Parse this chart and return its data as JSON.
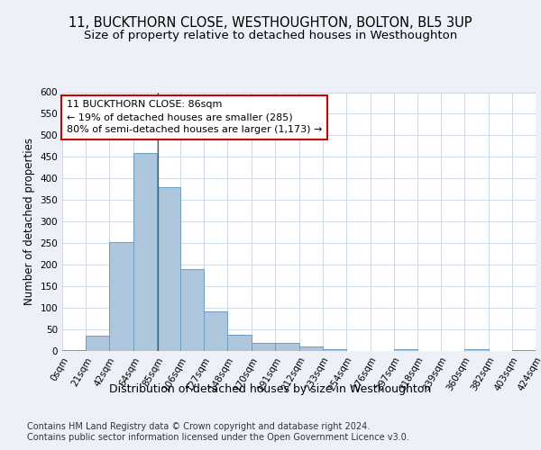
{
  "title": "11, BUCKTHORN CLOSE, WESTHOUGHTON, BOLTON, BL5 3UP",
  "subtitle": "Size of property relative to detached houses in Westhoughton",
  "xlabel": "Distribution of detached houses by size in Westhoughton",
  "ylabel": "Number of detached properties",
  "bar_color": "#aec6dc",
  "bar_edge_color": "#6b9dc2",
  "property_line_color": "#555555",
  "annotation_box_color": "#ffffff",
  "annotation_box_edge": "#cc0000",
  "annotation_text_line1": "11 BUCKTHORN CLOSE: 86sqm",
  "annotation_text_line2": "← 19% of detached houses are smaller (285)",
  "annotation_text_line3": "80% of semi-detached houses are larger (1,173) →",
  "property_value": 86,
  "bin_edges": [
    0,
    21,
    42,
    64,
    85,
    106,
    127,
    148,
    170,
    191,
    212,
    233,
    254,
    276,
    297,
    318,
    339,
    360,
    382,
    403,
    424
  ],
  "bar_heights": [
    3,
    36,
    252,
    460,
    380,
    190,
    91,
    38,
    19,
    19,
    10,
    5,
    0,
    0,
    5,
    0,
    0,
    5,
    0,
    3
  ],
  "ylim": [
    0,
    600
  ],
  "yticks": [
    0,
    50,
    100,
    150,
    200,
    250,
    300,
    350,
    400,
    450,
    500,
    550,
    600
  ],
  "footer_line1": "Contains HM Land Registry data © Crown copyright and database right 2024.",
  "footer_line2": "Contains public sector information licensed under the Open Government Licence v3.0.",
  "background_color": "#edf1f7",
  "plot_background": "#ffffff",
  "grid_color": "#ccd8e5",
  "title_fontsize": 10.5,
  "subtitle_fontsize": 9.5,
  "ylabel_fontsize": 8.5,
  "xlabel_fontsize": 9,
  "tick_fontsize": 7.5,
  "annotation_fontsize": 8,
  "footer_fontsize": 7
}
